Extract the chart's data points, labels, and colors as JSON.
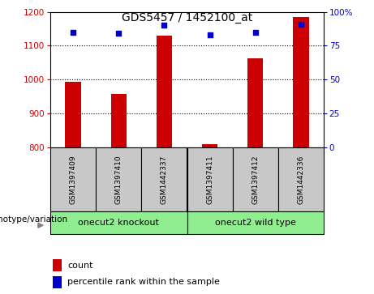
{
  "title": "GDS5457 / 1452100_at",
  "samples": [
    "GSM1397409",
    "GSM1397410",
    "GSM1442337",
    "GSM1397411",
    "GSM1397412",
    "GSM1442336"
  ],
  "counts": [
    993,
    958,
    1130,
    808,
    1062,
    1185
  ],
  "percentiles": [
    85,
    84,
    90,
    83,
    85,
    91
  ],
  "groups": [
    {
      "label": "onecut2 knockout",
      "start": 0,
      "end": 3,
      "color": "#90EE90"
    },
    {
      "label": "onecut2 wild type",
      "start": 3,
      "end": 6,
      "color": "#90EE90"
    }
  ],
  "ylim_left": [
    800,
    1200
  ],
  "ylim_right": [
    0,
    100
  ],
  "yticks_left": [
    800,
    900,
    1000,
    1100,
    1200
  ],
  "yticks_right": [
    0,
    25,
    50,
    75,
    100
  ],
  "bar_color": "#CC0000",
  "dot_color": "#0000CC",
  "bar_width": 0.35,
  "left_tick_color": "#CC0000",
  "right_tick_color": "#0000CC",
  "bg_color": "#C8C8C8",
  "genotype_label": "genotype/variation",
  "legend_count": "count",
  "legend_percentile": "percentile rank within the sample"
}
